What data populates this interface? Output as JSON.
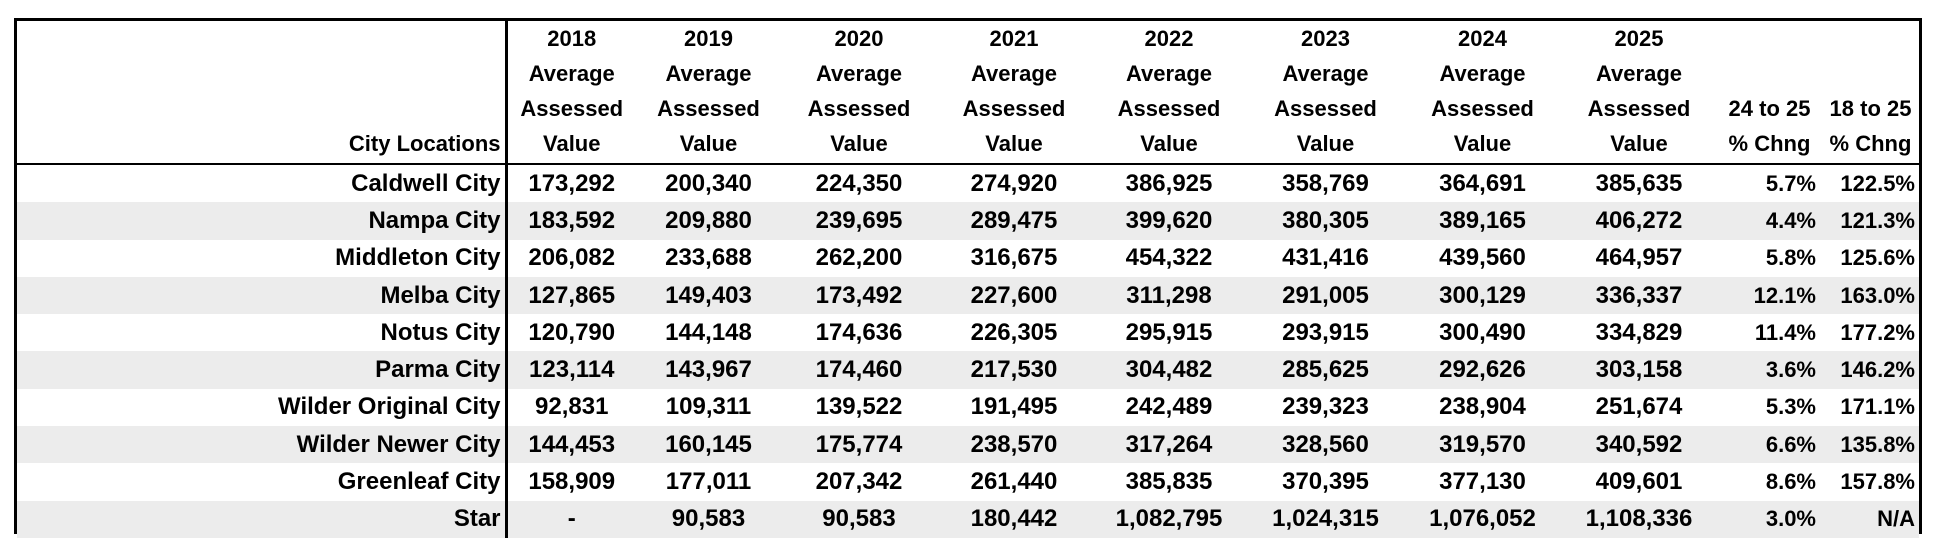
{
  "header": {
    "city_col": "City Locations",
    "years": [
      {
        "line1": "2018",
        "line2": "Average",
        "line3": "Assessed",
        "line4": "Value"
      },
      {
        "line1": "2019",
        "line2": "Average",
        "line3": "Assessed",
        "line4": "Value"
      },
      {
        "line1": "2020",
        "line2": "Average",
        "line3": "Assessed",
        "line4": "Value"
      },
      {
        "line1": "2021",
        "line2": "Average",
        "line3": "Assessed",
        "line4": "Value"
      },
      {
        "line1": "2022",
        "line2": "Average",
        "line3": "Assessed",
        "line4": "Value"
      },
      {
        "line1": "2023",
        "line2": "Average",
        "line3": "Assessed",
        "line4": "Value"
      },
      {
        "line1": "2024",
        "line2": "Average",
        "line3": "Assessed",
        "line4": "Value"
      },
      {
        "line1": "2025",
        "line2": "Average",
        "line3": "Assessed",
        "line4": "Value"
      }
    ],
    "chg1": {
      "line1": "24 to 25",
      "line2": "% Chng"
    },
    "chg2": {
      "line1": "18 to 25",
      "line2": "% Chng"
    }
  },
  "rows": [
    {
      "city": "Caldwell City",
      "v": [
        "173,292",
        "200,340",
        "224,350",
        "274,920",
        "386,925",
        "358,769",
        "364,691",
        "385,635"
      ],
      "chg1": "5.7%",
      "chg2": "122.5%"
    },
    {
      "city": "Nampa City",
      "v": [
        "183,592",
        "209,880",
        "239,695",
        "289,475",
        "399,620",
        "380,305",
        "389,165",
        "406,272"
      ],
      "chg1": "4.4%",
      "chg2": "121.3%"
    },
    {
      "city": "Middleton City",
      "v": [
        "206,082",
        "233,688",
        "262,200",
        "316,675",
        "454,322",
        "431,416",
        "439,560",
        "464,957"
      ],
      "chg1": "5.8%",
      "chg2": "125.6%"
    },
    {
      "city": "Melba City",
      "v": [
        "127,865",
        "149,403",
        "173,492",
        "227,600",
        "311,298",
        "291,005",
        "300,129",
        "336,337"
      ],
      "chg1": "12.1%",
      "chg2": "163.0%"
    },
    {
      "city": "Notus City",
      "v": [
        "120,790",
        "144,148",
        "174,636",
        "226,305",
        "295,915",
        "293,915",
        "300,490",
        "334,829"
      ],
      "chg1": "11.4%",
      "chg2": "177.2%"
    },
    {
      "city": "Parma City",
      "v": [
        "123,114",
        "143,967",
        "174,460",
        "217,530",
        "304,482",
        "285,625",
        "292,626",
        "303,158"
      ],
      "chg1": "3.6%",
      "chg2": "146.2%"
    },
    {
      "city": "Wilder Original City",
      "v": [
        "92,831",
        "109,311",
        "139,522",
        "191,495",
        "242,489",
        "239,323",
        "238,904",
        "251,674"
      ],
      "chg1": "5.3%",
      "chg2": "171.1%"
    },
    {
      "city": "Wilder Newer City",
      "v": [
        "144,453",
        "160,145",
        "175,774",
        "238,570",
        "317,264",
        "328,560",
        "319,570",
        "340,592"
      ],
      "chg1": "6.6%",
      "chg2": "135.8%"
    },
    {
      "city": "Greenleaf City",
      "v": [
        "158,909",
        "177,011",
        "207,342",
        "261,440",
        "385,835",
        "370,395",
        "377,130",
        "409,601"
      ],
      "chg1": "8.6%",
      "chg2": "157.8%"
    },
    {
      "city": "Star",
      "v": [
        "-",
        "90,583",
        "90,583",
        "180,442",
        "1,082,795",
        "1,024,315",
        "1,076,052",
        "1,108,336"
      ],
      "chg1": "3.0%",
      "chg2": "N/A"
    }
  ]
}
